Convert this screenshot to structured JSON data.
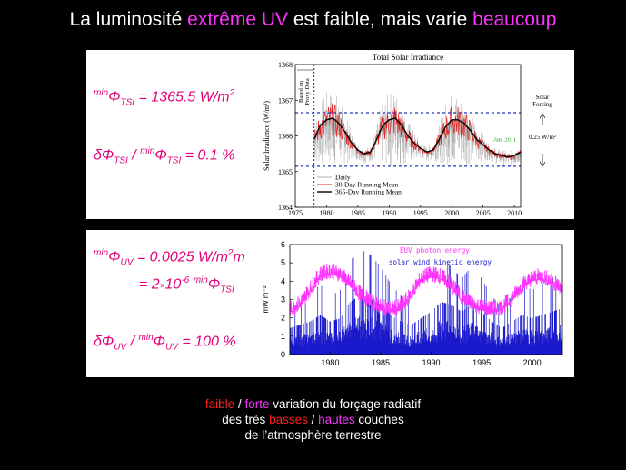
{
  "title": {
    "part1": "La luminosité ",
    "part2": "extrême UV",
    "part3": " est faible, mais varie ",
    "part4": "beaucoup"
  },
  "formulas_tsi": {
    "line1_sup": "min",
    "line1_sym": "Φ",
    "line1_sub": "TSI",
    "line1_value": " = 1365.5 W/m",
    "line1_exp": "2",
    "line2_delta": "δΦ",
    "line2_sub": "TSI",
    "line2_slash": " / ",
    "line2_sup": "min",
    "line2_sym": "Φ",
    "line2_sub2": "TSI",
    "line2_value": " = 0.1 %"
  },
  "formulas_uv": {
    "line1_sup": "min",
    "line1_sym": "Φ",
    "line1_sub": "UV",
    "line1_value": " = 0.0025 W/m",
    "line1_exp": "2",
    "line1_tail": "m",
    "line2_prefix": "= 2",
    "line2_times": "×",
    "line2_ten": "10",
    "line2_exp": "-6",
    "line2_sup": "min",
    "line2_sym": "Φ",
    "line2_sub": "TSI",
    "line3_delta": "δΦ",
    "line3_sub": "UV",
    "line3_slash": " / ",
    "line3_sup": "min",
    "line3_sym": "Φ",
    "line3_sub2": "UV",
    "line3_value": " = 100 %"
  },
  "chart_data": [
    {
      "type": "line",
      "title": "Total Solar Irradiance",
      "ylabel": "Solar Irradiance (W/m²)",
      "xlabel": "",
      "xlim": [
        1975,
        2011
      ],
      "ylim": [
        1364,
        1368
      ],
      "x_ticks": [
        1975,
        1980,
        1985,
        1990,
        1995,
        2000,
        2005,
        2010
      ],
      "y_ticks": [
        1364,
        1365,
        1366,
        1367,
        1368
      ],
      "grid": false,
      "legend_position": "bottom-left",
      "series": [
        {
          "name": "Daily",
          "color": "#b0b0b0"
        },
        {
          "name": "30-Day Running Mean",
          "color": "#e02020"
        },
        {
          "name": "365-Day Running Mean",
          "color": "#000000",
          "x": [
            1978,
            1979,
            1980,
            1981,
            1982,
            1983,
            1984,
            1985,
            1986,
            1987,
            1988,
            1989,
            1990,
            1991,
            1992,
            1993,
            1994,
            1995,
            1996,
            1997,
            1998,
            1999,
            2000,
            2001,
            2002,
            2003,
            2004,
            2005,
            2006,
            2007,
            2008,
            2009,
            2010,
            2011
          ],
          "y": [
            1365.9,
            1366.3,
            1366.45,
            1366.5,
            1366.35,
            1366.1,
            1365.8,
            1365.6,
            1365.5,
            1365.55,
            1365.9,
            1366.3,
            1366.45,
            1366.5,
            1366.3,
            1366.0,
            1365.8,
            1365.65,
            1365.55,
            1365.6,
            1365.9,
            1366.25,
            1366.45,
            1366.45,
            1366.35,
            1366.15,
            1365.9,
            1365.75,
            1365.6,
            1365.5,
            1365.45,
            1365.4,
            1365.45,
            1365.55
          ]
        }
      ],
      "reference_lines": [
        1366.65,
        1365.15
      ],
      "proxy_cutoff_x": 1978,
      "annotations": {
        "proxy_label": "Based on\nProxy Data",
        "forcing_label": "Solar\nForcing",
        "forcing_value": "0.25 W/m²",
        "date_label": "Jan. 2011"
      }
    },
    {
      "type": "line",
      "ylabel": "mW m⁻²",
      "xlim": [
        1976,
        2003
      ],
      "ylim": [
        0,
        6
      ],
      "x_ticks": [
        1980,
        1985,
        1990,
        1995,
        2000
      ],
      "y_ticks": [
        0,
        1,
        2,
        3,
        4,
        5,
        6
      ],
      "legend_position": "top-right",
      "series": [
        {
          "name": "EUV photon energy",
          "color": "#ff33ff",
          "x": [
            1976,
            1977,
            1978,
            1979,
            1980,
            1981,
            1982,
            1983,
            1984,
            1985,
            1986,
            1987,
            1988,
            1989,
            1990,
            1991,
            1992,
            1993,
            1994,
            1995,
            1996,
            1997,
            1998,
            1999,
            2000,
            2001,
            2002,
            2003
          ],
          "y": [
            2.5,
            2.8,
            3.6,
            4.4,
            4.6,
            4.4,
            3.9,
            3.3,
            2.9,
            2.6,
            2.5,
            2.6,
            3.3,
            4.2,
            4.4,
            4.3,
            3.8,
            3.2,
            2.8,
            2.6,
            2.5,
            2.6,
            3.1,
            3.8,
            4.2,
            4.3,
            4.0,
            3.6
          ]
        },
        {
          "name": "solar wind kinetic energy",
          "color": "#1a1acc",
          "x": [
            1976,
            1977,
            1978,
            1979,
            1980,
            1981,
            1982,
            1983,
            1984,
            1985,
            1986,
            1987,
            1988,
            1989,
            1990,
            1991,
            1992,
            1993,
            1994,
            1995,
            1996,
            1997,
            1998,
            1999,
            2000,
            2001,
            2002,
            2003
          ],
          "y": [
            0.8,
            0.9,
            1.0,
            1.2,
            1.0,
            1.1,
            1.6,
            1.8,
            1.7,
            1.5,
            1.2,
            1.0,
            0.9,
            1.1,
            1.3,
            1.6,
            1.5,
            1.3,
            1.5,
            1.3,
            1.0,
            0.8,
            1.0,
            1.2,
            1.1,
            1.2,
            1.3,
            1.4
          ]
        }
      ]
    }
  ],
  "bottom": {
    "l1_faible": "faible",
    "l1_slash": " / ",
    "l1_forte": "forte",
    "l1_rest": " variation du forçage radiatif",
    "l2_a": "des très ",
    "l2_basses": "basses",
    "l2_slash": " / ",
    "l2_hautes": "hautes",
    "l2_rest": " couches",
    "l3": "de l’atmosphère terrestre"
  },
  "colors": {
    "background": "#000000",
    "accent_magenta": "#ff33ff",
    "accent_red": "#ff2222",
    "formula": "#e0007a"
  }
}
